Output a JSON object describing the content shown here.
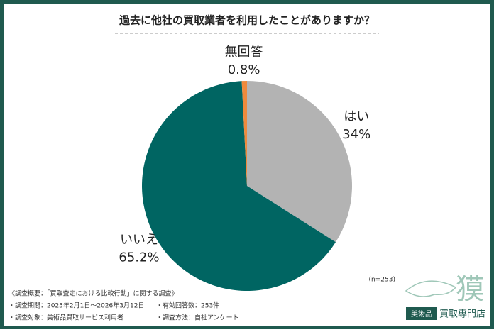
{
  "chart_data": {
    "type": "pie",
    "title": "過去に他社の買取業者を利用したことがありますか？",
    "categories": [
      "はい",
      "いいえ",
      "無回答"
    ],
    "values": [
      34,
      65.2,
      0.8
    ],
    "value_labels": [
      "34%",
      "65.2%",
      "0.8%"
    ],
    "colors": [
      "#b3b3b3",
      "#006562",
      "#ef8a3c"
    ],
    "note": "(n=253)"
  },
  "footer": {
    "heading": "《調査概要：「買取査定における比較行動」に関する調査》",
    "period": "・調査期間：2025年2月1日～2026年3月12日",
    "count": "・有効回答数：253件",
    "target": "・調査対象：美術品買取サービス利用者",
    "method": "・調査方法：自社アンケート"
  },
  "logo": {
    "mark": "獏",
    "badge": "美術品",
    "name": "買取専門店"
  }
}
